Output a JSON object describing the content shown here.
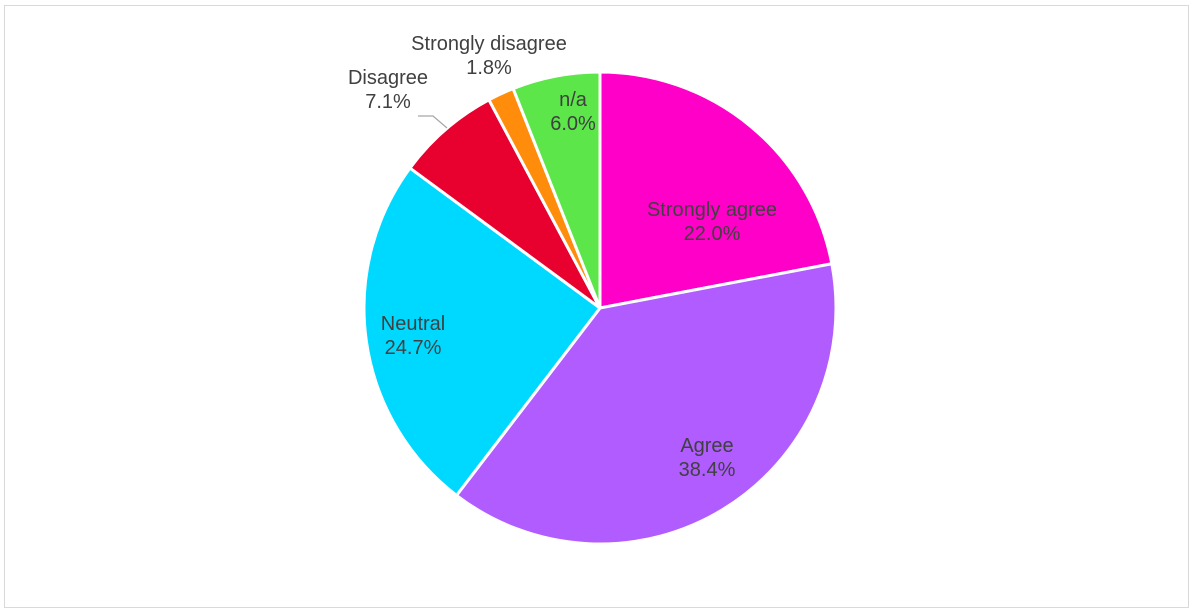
{
  "chart_data": {
    "type": "pie",
    "title": "",
    "slices": [
      {
        "label": "Strongly agree",
        "value": 22.0,
        "pct_text": "22.0%",
        "color": "#ff00c8"
      },
      {
        "label": "Agree",
        "value": 38.4,
        "pct_text": "38.4%",
        "color": "#b05cff"
      },
      {
        "label": "Neutral",
        "value": 24.7,
        "pct_text": "24.7%",
        "color": "#00d9ff"
      },
      {
        "label": "Disagree",
        "value": 7.1,
        "pct_text": "7.1%",
        "color": "#e8002e"
      },
      {
        "label": "Strongly disagree",
        "value": 1.8,
        "pct_text": "1.8%",
        "color": "#ff8c0a"
      },
      {
        "label": "n/a",
        "value": 6.0,
        "pct_text": "6.0%",
        "color": "#5ce64a"
      }
    ],
    "start_angle_deg": 0,
    "direction": "clockwise",
    "legend": "none",
    "slice_border_color": "#ffffff",
    "label_color": "#404040",
    "leader_line_color": "#a6a6a6"
  }
}
